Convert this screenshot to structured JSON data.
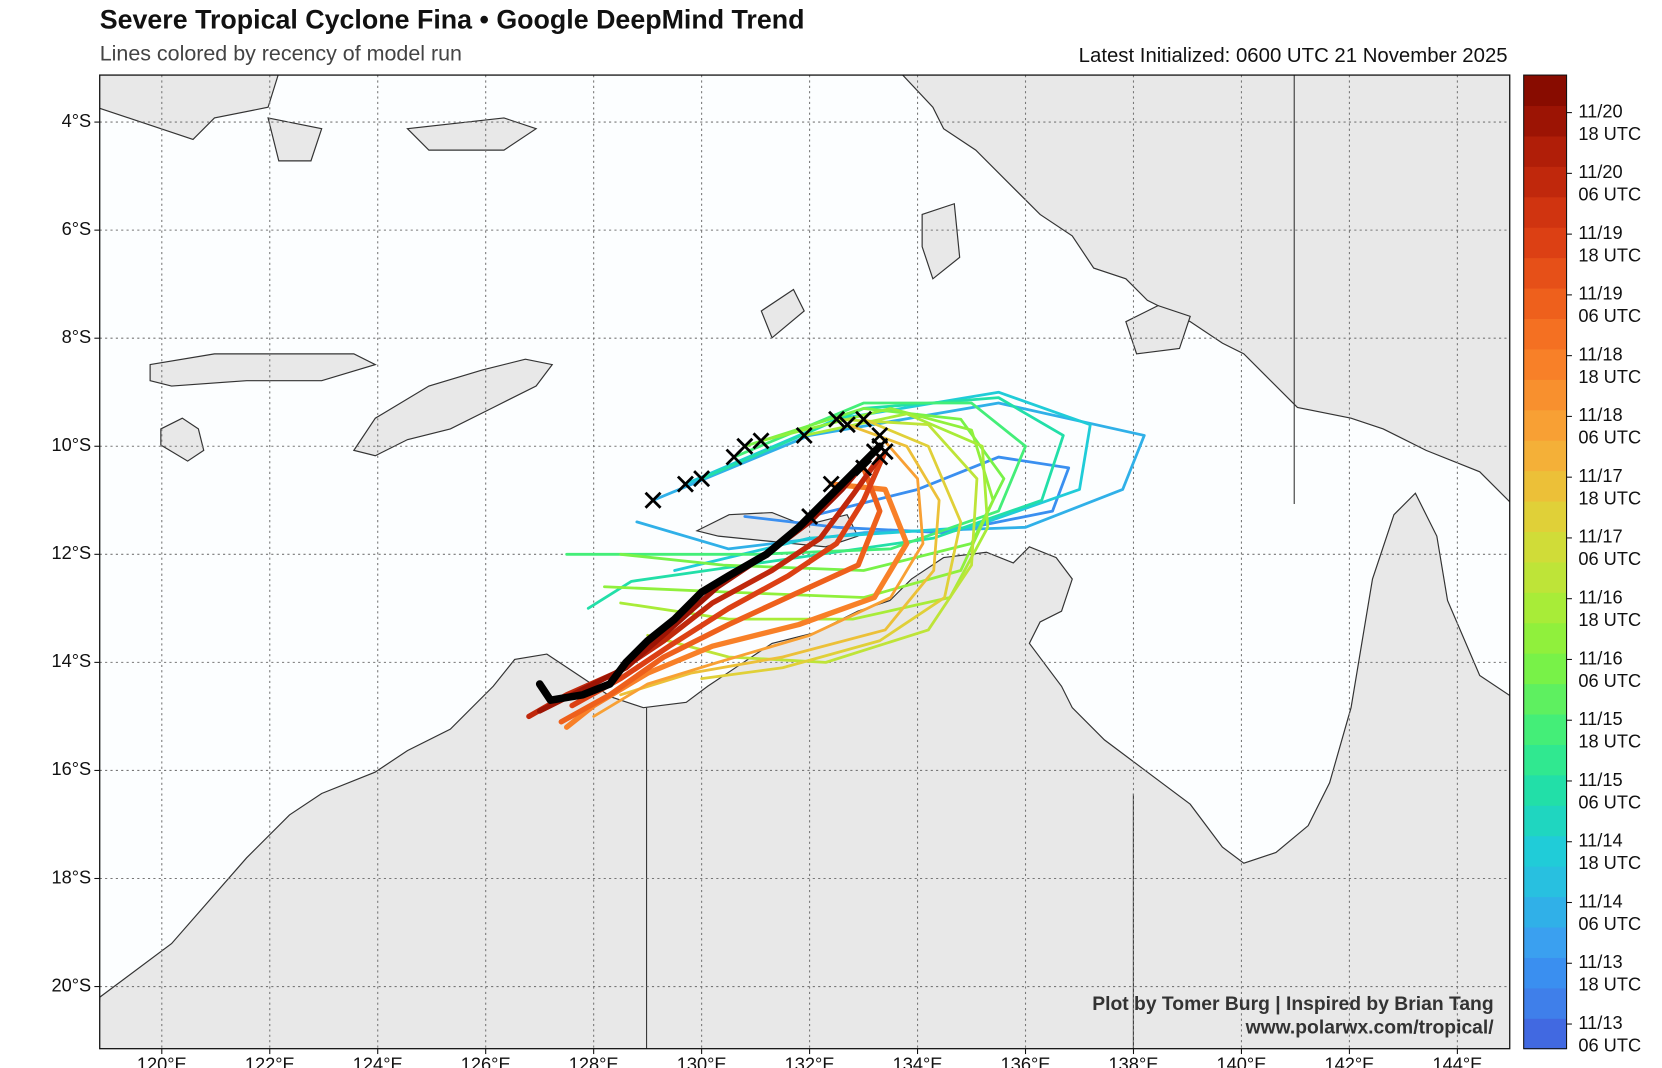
{
  "chart_data": {
    "type": "line",
    "title": "Severe Tropical Cyclone Fina • Google DeepMind Trend",
    "subtitle": "Lines colored by recency of model run",
    "initialized": "Latest Initialized: 0600 UTC 21 November 2025",
    "credit": [
      "Plot by Tomer Burg | Inspired by Brian Tang",
      "www.polarwx.com/tropical/"
    ],
    "xlim": [
      118.85,
      144.97
    ],
    "ylim": [
      -21.15,
      -3.13
    ],
    "xticks": [
      {
        "value": 120,
        "label": "120°E"
      },
      {
        "value": 122,
        "label": "122°E"
      },
      {
        "value": 124,
        "label": "124°E"
      },
      {
        "value": 126,
        "label": "126°E"
      },
      {
        "value": 128,
        "label": "128°E"
      },
      {
        "value": 130,
        "label": "130°E"
      },
      {
        "value": 132,
        "label": "132°E"
      },
      {
        "value": 134,
        "label": "134°E"
      },
      {
        "value": 136,
        "label": "136°E"
      },
      {
        "value": 138,
        "label": "138°E"
      },
      {
        "value": 140,
        "label": "140°E"
      },
      {
        "value": 142,
        "label": "142°E"
      },
      {
        "value": 144,
        "label": "144°E"
      }
    ],
    "yticks": [
      {
        "value": -4,
        "label": "4°S"
      },
      {
        "value": -6,
        "label": "6°S"
      },
      {
        "value": -8,
        "label": "8°S"
      },
      {
        "value": -10,
        "label": "10°S"
      },
      {
        "value": -12,
        "label": "12°S"
      },
      {
        "value": -14,
        "label": "14°S"
      },
      {
        "value": -16,
        "label": "16°S"
      },
      {
        "value": -18,
        "label": "18°S"
      },
      {
        "value": -20,
        "label": "20°S"
      }
    ],
    "grid": true,
    "colorbar": {
      "colors": [
        "#4169e1",
        "#3f7fea",
        "#3a8ff0",
        "#3aa0f0",
        "#30b0e8",
        "#28c0e0",
        "#20ccd8",
        "#1fd6c0",
        "#22dfa8",
        "#30e890",
        "#44ee78",
        "#5ef060",
        "#78f248",
        "#90f03c",
        "#a8ec38",
        "#bee438",
        "#d0dc38",
        "#e0d038",
        "#ecc038",
        "#f4b038",
        "#f8a034",
        "#f8902e",
        "#f88028",
        "#f47022",
        "#ee601c",
        "#e65018",
        "#dc4014",
        "#d03410",
        "#c0280c",
        "#b01e08",
        "#9c1404",
        "#880c00"
      ],
      "labels": [
        {
          "date": "11/20",
          "time": "18 UTC"
        },
        {
          "date": "11/20",
          "time": "06 UTC"
        },
        {
          "date": "11/19",
          "time": "18 UTC"
        },
        {
          "date": "11/19",
          "time": "06 UTC"
        },
        {
          "date": "11/18",
          "time": "18 UTC"
        },
        {
          "date": "11/18",
          "time": "06 UTC"
        },
        {
          "date": "11/17",
          "time": "18 UTC"
        },
        {
          "date": "11/17",
          "time": "06 UTC"
        },
        {
          "date": "11/16",
          "time": "18 UTC"
        },
        {
          "date": "11/16",
          "time": "06 UTC"
        },
        {
          "date": "11/15",
          "time": "18 UTC"
        },
        {
          "date": "11/15",
          "time": "06 UTC"
        },
        {
          "date": "11/14",
          "time": "18 UTC"
        },
        {
          "date": "11/14",
          "time": "06 UTC"
        },
        {
          "date": "11/13",
          "time": "18 UTC"
        },
        {
          "date": "11/13",
          "time": "06 UTC"
        }
      ]
    },
    "series": [
      {
        "color": "#3a8ff0",
        "x": [
          132.0,
          134,
          135.5,
          136.8,
          136.5,
          134.5,
          132.5,
          130.8
        ],
        "values": [
          -11.3,
          -10.8,
          -10.2,
          -10.4,
          -11.2,
          -11.6,
          -11.5,
          -11.3
        ]
      },
      {
        "color": "#30b0e8",
        "x": [
          129.1,
          132,
          135.5,
          138.2,
          137.8,
          136,
          133,
          130.5,
          128.8
        ],
        "values": [
          -11.0,
          -9.8,
          -9.2,
          -9.8,
          -10.8,
          -11.5,
          -11.6,
          -11.9,
          -11.4
        ]
      },
      {
        "color": "#20ccd8",
        "x": [
          129.7,
          132.5,
          135.5,
          137.2,
          137.0,
          135,
          132,
          129.5
        ],
        "values": [
          -10.7,
          -9.5,
          -9.0,
          -9.6,
          -10.8,
          -11.5,
          -11.7,
          -12.3
        ]
      },
      {
        "color": "#22dfa8",
        "x": [
          130.0,
          133,
          135.5,
          136.7,
          136.3,
          134.3,
          131.5,
          128.7,
          127.9
        ],
        "values": [
          -10.6,
          -9.3,
          -9.1,
          -9.8,
          -11.0,
          -11.7,
          -12.1,
          -12.5,
          -13.0
        ]
      },
      {
        "color": "#44ee78",
        "x": [
          130.6,
          133,
          135,
          136,
          135.5,
          133.5,
          131,
          127.5
        ],
        "values": [
          -10.2,
          -9.2,
          -9.2,
          -10.0,
          -11.2,
          -11.9,
          -12.0,
          -12.0
        ]
      },
      {
        "color": "#78f248",
        "x": [
          130.8,
          133,
          134.8,
          135.6,
          135,
          133,
          130.4,
          128.5
        ],
        "values": [
          -10.0,
          -9.3,
          -9.5,
          -10.6,
          -11.8,
          -12.3,
          -12.2,
          -12.0
        ]
      },
      {
        "color": "#90f03c",
        "x": [
          131.1,
          133.5,
          135.0,
          135.4,
          134.8,
          133,
          130.5,
          128.2
        ],
        "values": [
          -9.9,
          -9.3,
          -9.7,
          -11.0,
          -12.3,
          -12.8,
          -12.7,
          -12.6
        ]
      },
      {
        "color": "#a8ec38",
        "x": [
          131.9,
          133.8,
          135.2,
          135.3,
          134.6,
          132.8,
          130.5,
          128.5
        ],
        "values": [
          -9.8,
          -9.4,
          -10.0,
          -11.5,
          -12.8,
          -13.2,
          -13.2,
          -12.9
        ]
      },
      {
        "color": "#bee438",
        "x": [
          132.5,
          134.2,
          135.1,
          135.0,
          134.2,
          132.3,
          130.5,
          129
        ],
        "values": [
          -9.5,
          -9.6,
          -10.6,
          -12.2,
          -13.4,
          -14.0,
          -13.9,
          -13.5
        ]
      },
      {
        "color": "#e0d038",
        "x": [
          133.0,
          134.2,
          134.8,
          134.5,
          133.3,
          131.5,
          130
        ],
        "values": [
          -9.5,
          -10.0,
          -11.4,
          -12.8,
          -13.6,
          -14.1,
          -14.3
        ]
      },
      {
        "color": "#ecc038",
        "x": [
          132.7,
          133.8,
          134.4,
          134.3,
          133.4,
          131.5,
          129.8,
          128.5
        ],
        "values": [
          -9.6,
          -10.0,
          -11.0,
          -12.3,
          -13.4,
          -13.9,
          -14.2,
          -14.6
        ]
      },
      {
        "color": "#f8a034",
        "x": [
          133.3,
          134.0,
          134.1,
          133.5,
          132,
          130.3,
          129,
          128
        ],
        "values": [
          -9.8,
          -10.6,
          -11.8,
          -12.8,
          -13.5,
          -14.0,
          -14.4,
          -15.0
        ]
      },
      {
        "color": "#f88028",
        "x": [
          132.4,
          133.4,
          133.8,
          133.2,
          131.8,
          130.2,
          129,
          128,
          127.5
        ],
        "values": [
          -10.7,
          -10.8,
          -11.8,
          -12.8,
          -13.3,
          -13.7,
          -14.2,
          -14.8,
          -15.2
        ]
      },
      {
        "color": "#ee601c",
        "x": [
          133.0,
          133.3,
          132.9,
          131.8,
          130.5,
          129.3,
          128.3,
          127.4
        ],
        "values": [
          -10.4,
          -11.2,
          -12.2,
          -12.7,
          -13.3,
          -13.9,
          -14.6,
          -15.1
        ]
      },
      {
        "color": "#dc4014",
        "x": [
          133.4,
          133.0,
          132.5,
          131.6,
          130.5,
          129.4,
          128.5,
          127.6
        ],
        "values": [
          -10.1,
          -11.0,
          -11.8,
          -12.4,
          -13.0,
          -13.7,
          -14.3,
          -14.8
        ]
      },
      {
        "color": "#c0280c",
        "x": [
          133.3,
          132.8,
          132.2,
          131.3,
          130.2,
          129.3,
          128.4,
          127.5,
          126.8
        ],
        "values": [
          -10.2,
          -10.9,
          -11.7,
          -12.3,
          -12.9,
          -13.6,
          -14.2,
          -14.6,
          -15.0
        ]
      },
      {
        "color": "#9c1404",
        "x": [
          133.2,
          132.6,
          132,
          131.2,
          130.3,
          129.4,
          128.6,
          127.8,
          127
        ],
        "values": [
          -10.1,
          -10.8,
          -11.4,
          -12.0,
          -12.6,
          -13.4,
          -14.1,
          -14.5,
          -14.9
        ]
      },
      {
        "color": "#000000",
        "x": [
          133.3,
          132.8,
          132.3,
          131.8,
          131.2,
          130.5,
          130.0,
          129.5,
          129.0,
          128.6,
          128.3,
          127.8,
          127.2,
          127.0
        ],
        "values": [
          -10.0,
          -10.5,
          -11.0,
          -11.5,
          -12.0,
          -12.4,
          -12.7,
          -13.2,
          -13.6,
          -14.0,
          -14.4,
          -14.6,
          -14.7,
          -14.4
        ]
      }
    ]
  }
}
